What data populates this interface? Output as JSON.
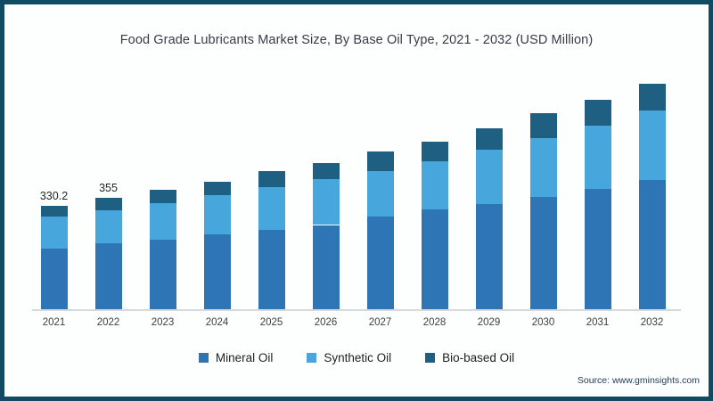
{
  "chart": {
    "title": "Food Grade Lubricants Market Size, By Base Oil Type, 2021 - 2032 (USD Million)",
    "source": "Source: www.gminsights.com"
  },
  "colors": {
    "frame_border": "#134a63",
    "axis_line": "#d9d9d9",
    "mineral_oil": "#2e75b6",
    "synthetic_oil": "#47a6dc",
    "bio_based_oil": "#1e5f82"
  },
  "chart_data": {
    "type": "bar",
    "stacked": true,
    "title": "Food Grade Lubricants Market Size, By Base Oil Type, 2021 - 2032 (USD Million)",
    "xlabel": "",
    "ylabel": "USD Million",
    "y_axis_visible": false,
    "grid": false,
    "legend_position": "bottom",
    "ylim": [
      0,
      760
    ],
    "categories": [
      "2021",
      "2022",
      "2023",
      "2024",
      "2025",
      "2026",
      "2027",
      "2028",
      "2029",
      "2030",
      "2031",
      "2032"
    ],
    "series": [
      {
        "name": "Mineral Oil",
        "color": "#2e75b6",
        "values": [
          194,
          210,
          223,
          238,
          252,
          269,
          295,
          318,
          335,
          358,
          384,
          412
        ]
      },
      {
        "name": "Synthetic Oil",
        "color": "#47a6dc",
        "values": [
          102,
          107,
          115,
          126,
          137,
          146,
          146,
          155,
          175,
          189,
          203,
          223
        ]
      },
      {
        "name": "Bio-based Oil",
        "color": "#1e5f82",
        "values": [
          34.2,
          38,
          43,
          43,
          51,
          52,
          63,
          63,
          68,
          80,
          83,
          86
        ]
      }
    ],
    "totals": [
      330.2,
      355,
      381,
      407,
      440,
      467,
      504,
      536,
      578,
      627,
      670,
      721
    ],
    "data_labels": [
      "330.2",
      "355",
      null,
      null,
      null,
      null,
      null,
      null,
      null,
      null,
      null,
      null
    ]
  }
}
